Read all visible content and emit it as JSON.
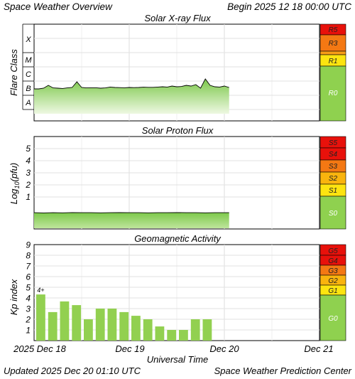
{
  "header": {
    "title": "Space Weather Overview",
    "begin": "Begin 2025 12 18 00:00 UTC"
  },
  "footer": {
    "updated": "Updated 2025 Dec 20 01:10 UTC",
    "center": "Space Weather Prediction Center"
  },
  "x_axis": {
    "label": "Universal Time",
    "ticks": [
      "2025 Dec 18",
      "Dec 19",
      "Dec 20",
      "Dec 21"
    ]
  },
  "chart_data": [
    {
      "type": "area",
      "title": "Solar X-ray Flux",
      "ylabel": "Flare Class",
      "y_tick_labels": [
        "X",
        "M",
        "C",
        "B",
        "A"
      ],
      "x_range_days": [
        0,
        3
      ],
      "series": [
        {
          "x_days": [
            0.0,
            0.05,
            0.1,
            0.15,
            0.2,
            0.25,
            0.3,
            0.35,
            0.4,
            0.45,
            0.5,
            0.55,
            0.6,
            0.65,
            0.7,
            0.75,
            0.8,
            0.85,
            0.9,
            0.95,
            1.0,
            1.05,
            1.1,
            1.15,
            1.2,
            1.25,
            1.3,
            1.35,
            1.4,
            1.45,
            1.5,
            1.55,
            1.6,
            1.65,
            1.7,
            1.75,
            1.8,
            1.85,
            1.9,
            1.95,
            2.0,
            2.05
          ],
          "log_flux": [
            -6.55,
            -6.55,
            -6.5,
            -6.3,
            -6.48,
            -6.5,
            -6.52,
            -6.48,
            -6.45,
            -6.05,
            -6.45,
            -6.48,
            -6.47,
            -6.47,
            -6.5,
            -6.48,
            -6.42,
            -6.45,
            -6.46,
            -6.47,
            -6.45,
            -6.46,
            -6.45,
            -6.43,
            -6.44,
            -6.44,
            -6.42,
            -6.4,
            -6.42,
            -6.35,
            -6.4,
            -6.38,
            -6.3,
            -6.35,
            -6.25,
            -6.5,
            -5.85,
            -6.3,
            -6.4,
            -6.42,
            -6.35,
            -6.45
          ]
        }
      ],
      "scale_labels": [
        "R5",
        "R3",
        "R1",
        "R0"
      ]
    },
    {
      "type": "area",
      "title": "Solar Proton Flux",
      "ylabel": "Log10(pfu)",
      "y_tick_labels": [
        "5",
        "4",
        "3",
        "2",
        "1"
      ],
      "x_range_days": [
        0,
        3
      ],
      "series": [
        {
          "x_days": [
            0.0,
            0.1,
            0.2,
            0.3,
            0.4,
            0.5,
            0.6,
            0.7,
            0.8,
            0.9,
            1.0,
            1.1,
            1.2,
            1.3,
            1.4,
            1.5,
            1.6,
            1.7,
            1.8,
            1.9,
            2.0,
            2.05
          ],
          "values": [
            -0.3,
            -0.32,
            -0.3,
            -0.31,
            -0.29,
            -0.3,
            -0.3,
            -0.31,
            -0.3,
            -0.29,
            -0.3,
            -0.3,
            -0.31,
            -0.3,
            -0.3,
            -0.29,
            -0.3,
            -0.3,
            -0.31,
            -0.3,
            -0.3,
            -0.3
          ]
        }
      ],
      "scale_labels": [
        "S5",
        "S4",
        "S3",
        "S2",
        "S1",
        "S0"
      ]
    },
    {
      "type": "bar",
      "title": "Geomagnetic Activity",
      "ylabel": "Kp index",
      "y_tick_labels": [
        "9",
        "8",
        "7",
        "6",
        "5",
        "4",
        "3",
        "2",
        "1"
      ],
      "ylim": [
        0,
        9
      ],
      "bar_width_days": 0.125,
      "values": [
        4.33,
        2.67,
        3.67,
        3.33,
        2.0,
        3.0,
        3.0,
        2.67,
        2.33,
        2.0,
        1.33,
        1.0,
        1.0,
        2.0,
        2.0
      ],
      "annotations": [
        {
          "bar": 0,
          "text": "4+"
        }
      ],
      "scale_labels": [
        "G5",
        "G4",
        "G3",
        "G2",
        "G1",
        "G0"
      ]
    }
  ],
  "colors": {
    "fill_top": "#8bd056",
    "fill_bottom": "#e3f4cf",
    "scale_red": "#e8110b",
    "scale_dark_orange": "#f47813",
    "scale_orange": "#f79d17",
    "scale_yellow": "#fde410",
    "scale_green": "#8fd14f"
  }
}
